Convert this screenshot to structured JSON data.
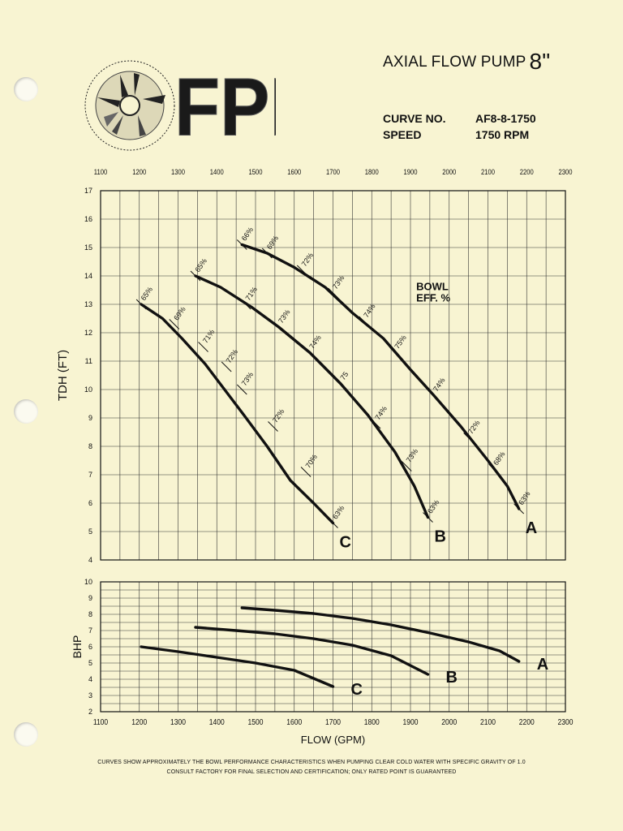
{
  "header": {
    "brand": "FPI",
    "title": "AXIAL FLOW PUMP",
    "size": "8\"",
    "curve_no_label": "CURVE NO.",
    "curve_no_value": "AF8-8-1750",
    "speed_label": "SPEED",
    "speed_value": "1750 RPM"
  },
  "footnotes": [
    "CURVES SHOW APPROXIMATELY THE BOWL PERFORMANCE CHARACTERISTICS WHEN PUMPING CLEAR COLD WATER WITH SPECIFIC GRAVITY OF 1.0",
    "CONSULT FACTORY FOR FINAL SELECTION AND CERTIFICATION; ONLY RATED POINT IS  GUARANTEED"
  ],
  "chart_data": [
    {
      "type": "line",
      "ylabel": "TDH (FT)",
      "xlim": [
        1100,
        2300
      ],
      "ylim": [
        4,
        17
      ],
      "x_ticks": [
        1100,
        1200,
        1300,
        1400,
        1500,
        1600,
        1700,
        1800,
        1900,
        2000,
        2100,
        2200,
        2300
      ],
      "y_ticks": [
        4,
        5,
        6,
        7,
        8,
        9,
        10,
        11,
        12,
        13,
        14,
        15,
        16,
        17
      ],
      "grid": true,
      "annotation": [
        "BOWL",
        "EFF. %"
      ],
      "series": [
        {
          "name": "A",
          "points": [
            [
              1465,
              15.1
            ],
            [
              1530,
              14.8
            ],
            [
              1600,
              14.3
            ],
            [
              1680,
              13.6
            ],
            [
              1750,
              12.7
            ],
            [
              1830,
              11.8
            ],
            [
              1900,
              10.7
            ],
            [
              1960,
              9.8
            ],
            [
              2030,
              8.7
            ],
            [
              2100,
              7.5
            ],
            [
              2150,
              6.6
            ],
            [
              2180,
              5.8
            ]
          ],
          "efficiency_labels": [
            {
              "x": 1465,
              "y": 15.1,
              "label": "66%"
            },
            {
              "x": 1530,
              "y": 14.8,
              "label": "69%"
            },
            {
              "x": 1620,
              "y": 14.2,
              "label": "72%"
            },
            {
              "x": 1700,
              "y": 13.4,
              "label": "73%"
            },
            {
              "x": 1780,
              "y": 12.4,
              "label": "74%"
            },
            {
              "x": 1860,
              "y": 11.3,
              "label": "75%"
            },
            {
              "x": 1960,
              "y": 9.8,
              "label": "74%"
            },
            {
              "x": 2050,
              "y": 8.3,
              "label": "72%"
            },
            {
              "x": 2115,
              "y": 7.2,
              "label": "68%"
            },
            {
              "x": 2180,
              "y": 5.8,
              "label": "63%"
            }
          ]
        },
        {
          "name": "B",
          "points": [
            [
              1345,
              14.0
            ],
            [
              1410,
              13.6
            ],
            [
              1490,
              12.9
            ],
            [
              1560,
              12.2
            ],
            [
              1640,
              11.3
            ],
            [
              1720,
              10.2
            ],
            [
              1790,
              9.1
            ],
            [
              1860,
              7.8
            ],
            [
              1910,
              6.6
            ],
            [
              1945,
              5.5
            ]
          ],
          "efficiency_labels": [
            {
              "x": 1345,
              "y": 14.0,
              "label": "65%"
            },
            {
              "x": 1475,
              "y": 13.0,
              "label": "71%"
            },
            {
              "x": 1560,
              "y": 12.2,
              "label": "73%"
            },
            {
              "x": 1640,
              "y": 11.3,
              "label": "74%"
            },
            {
              "x": 1720,
              "y": 10.2,
              "label": "75"
            },
            {
              "x": 1810,
              "y": 8.8,
              "label": "74%"
            },
            {
              "x": 1890,
              "y": 7.3,
              "label": "73%"
            },
            {
              "x": 1945,
              "y": 5.5,
              "label": "63%"
            }
          ]
        },
        {
          "name": "C",
          "points": [
            [
              1205,
              13.0
            ],
            [
              1260,
              12.5
            ],
            [
              1310,
              11.8
            ],
            [
              1370,
              10.9
            ],
            [
              1420,
              10.0
            ],
            [
              1470,
              9.1
            ],
            [
              1530,
              8.0
            ],
            [
              1590,
              6.8
            ],
            [
              1650,
              6.0
            ],
            [
              1700,
              5.3
            ]
          ],
          "efficiency_labels": [
            {
              "x": 1205,
              "y": 13.0,
              "label": "65%"
            },
            {
              "x": 1290,
              "y": 12.3,
              "label": "69%"
            },
            {
              "x": 1365,
              "y": 11.5,
              "label": "71%"
            },
            {
              "x": 1425,
              "y": 10.8,
              "label": "72%"
            },
            {
              "x": 1465,
              "y": 10.0,
              "label": "73%"
            },
            {
              "x": 1545,
              "y": 8.7,
              "label": "72%"
            },
            {
              "x": 1630,
              "y": 7.1,
              "label": "70%"
            },
            {
              "x": 1700,
              "y": 5.3,
              "label": "63%"
            }
          ]
        }
      ]
    },
    {
      "type": "line",
      "xlabel": "FLOW (GPM)",
      "ylabel": "BHP",
      "xlim": [
        1100,
        2300
      ],
      "ylim": [
        2,
        10
      ],
      "x_ticks": [
        1100,
        1200,
        1300,
        1400,
        1500,
        1600,
        1700,
        1800,
        1900,
        2000,
        2100,
        2200,
        2300
      ],
      "y_ticks": [
        2,
        3,
        4,
        5,
        6,
        7,
        8,
        9,
        10
      ],
      "grid": true,
      "series": [
        {
          "name": "A",
          "points": [
            [
              1465,
              8.4
            ],
            [
              1550,
              8.25
            ],
            [
              1650,
              8.05
            ],
            [
              1750,
              7.75
            ],
            [
              1850,
              7.35
            ],
            [
              1950,
              6.85
            ],
            [
              2050,
              6.3
            ],
            [
              2130,
              5.75
            ],
            [
              2180,
              5.1
            ]
          ]
        },
        {
          "name": "B",
          "points": [
            [
              1345,
              7.2
            ],
            [
              1450,
              7.0
            ],
            [
              1550,
              6.8
            ],
            [
              1650,
              6.5
            ],
            [
              1750,
              6.1
            ],
            [
              1850,
              5.45
            ],
            [
              1945,
              4.3
            ]
          ]
        },
        {
          "name": "C",
          "points": [
            [
              1205,
              6.0
            ],
            [
              1300,
              5.7
            ],
            [
              1400,
              5.35
            ],
            [
              1500,
              5.0
            ],
            [
              1600,
              4.55
            ],
            [
              1700,
              3.55
            ]
          ]
        }
      ]
    }
  ],
  "colors": {
    "background": "#f8f4d2",
    "ink": "#111111",
    "grid": "#333333"
  }
}
